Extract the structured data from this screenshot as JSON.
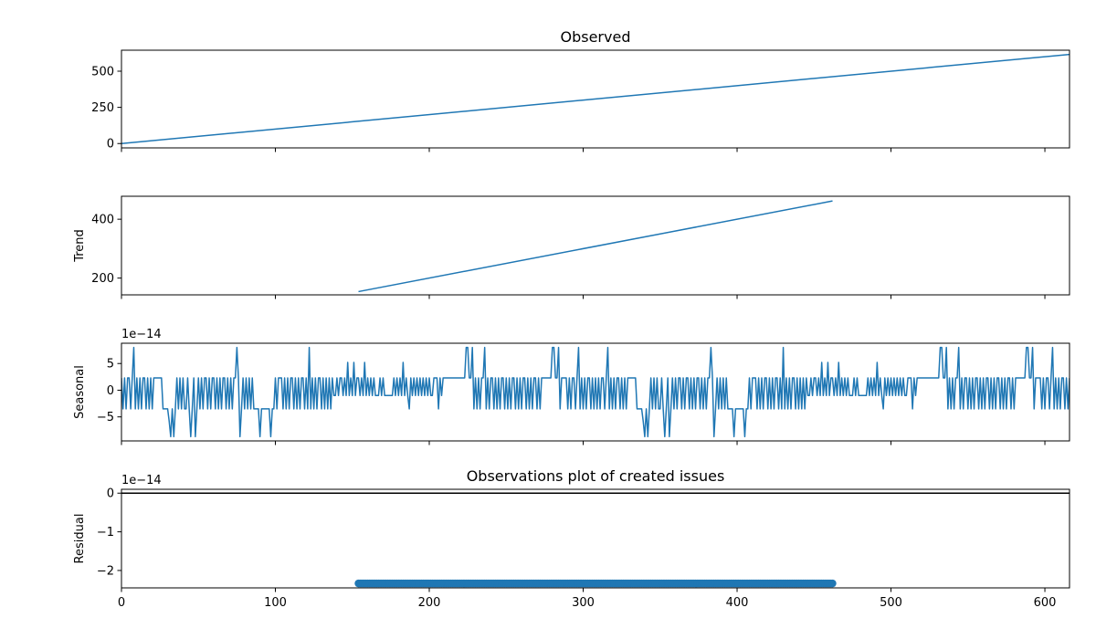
{
  "chart_data": {
    "type": "line",
    "xlim": [
      0,
      616
    ],
    "xticks": [
      0,
      100,
      200,
      300,
      400,
      500,
      600
    ],
    "line_color": "#1f77b4",
    "panels": [
      {
        "key": "observed",
        "type": "line",
        "title": "Observed",
        "ylabel": "",
        "offset_label": "",
        "ylim": [
          -30,
          645
        ],
        "yticks": [
          0,
          250,
          500
        ],
        "series": [
          {
            "x": [
              0,
              616
            ],
            "y": [
              0,
              616
            ]
          }
        ]
      },
      {
        "key": "trend",
        "type": "line",
        "title": "",
        "ylabel": "Trend",
        "offset_label": "",
        "ylim": [
          143,
          478
        ],
        "yticks": [
          200,
          400
        ],
        "series": [
          {
            "x": [
              154,
              462
            ],
            "y": [
              154,
              462
            ]
          }
        ]
      },
      {
        "key": "seasonal",
        "type": "line",
        "title": "",
        "ylabel": "Seasonal",
        "offset_label": "1e−14",
        "ylim": [
          -9.5,
          8.8
        ],
        "yticks": [
          -5,
          0,
          5
        ],
        "pattern": {
          "period": 308,
          "start": 0,
          "end": 616,
          "levels": [
            2.3,
            -3.5,
            2.3,
            -3.5,
            2.3,
            2.3,
            -3.5,
            2.3,
            8.0,
            -3.5,
            2.3,
            -3.5,
            2.3,
            -3.5,
            2.3,
            2.3,
            -3.5,
            2.3,
            -3.5,
            2.3,
            -3.5,
            2.3,
            2.3,
            2.3,
            2.3,
            2.3,
            2.3,
            -3.5,
            -3.5,
            -3.5,
            -3.5,
            -5.8,
            -8.7,
            -3.5,
            -8.7,
            -3.5,
            2.3,
            -3.5,
            2.3,
            -3.5,
            2.3,
            -3.5,
            -3.5,
            2.3,
            -3.5,
            -8.7,
            -3.5,
            2.3,
            -8.7,
            -3.5,
            2.3,
            -3.5,
            2.3,
            -3.5,
            2.3,
            2.3,
            -3.5,
            2.3,
            -3.5,
            2.3,
            2.3,
            -3.5,
            2.3,
            -3.5,
            2.3,
            -3.5,
            2.3,
            2.3,
            -3.5,
            2.3,
            -3.5,
            2.3,
            -3.5,
            2.3,
            2.3,
            8.0,
            2.3,
            -8.7,
            -3.5,
            2.3,
            -3.5,
            2.3,
            -3.5,
            2.3,
            -3.5,
            2.3,
            -3.5,
            -3.5,
            -3.5,
            -3.5,
            -8.7,
            -3.5,
            -3.5,
            -3.5,
            -3.5,
            -3.5,
            -3.5,
            -8.7,
            -3.5,
            -3.5,
            2.3,
            -3.5,
            2.3,
            2.3,
            2.3,
            -3.5,
            2.3,
            -3.5,
            2.3,
            -3.5,
            2.3,
            2.3,
            -3.5,
            2.3,
            -3.5,
            2.3,
            -3.5,
            2.3,
            2.3,
            -3.5,
            2.3,
            -3.5,
            8.0,
            -3.5,
            2.3,
            -3.5,
            2.3,
            -3.5,
            2.3,
            2.3,
            -3.5,
            2.3,
            -3.5,
            2.3,
            -3.5,
            2.3,
            -3.5,
            2.3,
            -1.0,
            -1.0,
            2.3,
            -1.0,
            2.3,
            2.3,
            -1.0,
            2.3,
            -1.0,
            5.2,
            -1.0,
            2.3,
            -1.0,
            5.2,
            -1.0,
            2.3,
            2.3,
            -1.0,
            2.3,
            -1.0,
            5.2,
            -1.0,
            2.3,
            -1.0,
            2.3,
            -1.0,
            2.3,
            -1.0,
            -1.0,
            -1.0,
            2.3,
            -1.0,
            2.3,
            -1.0,
            -1.0,
            -1.0,
            -1.0,
            -1.0,
            -1.0,
            2.3,
            -1.0,
            2.3,
            -1.0,
            2.3,
            -1.0,
            5.2,
            -1.0,
            2.3,
            -1.0,
            -3.5,
            2.3,
            -1.0,
            2.3,
            -1.0,
            2.3,
            -1.0,
            2.3,
            -1.0,
            2.3,
            -1.0,
            2.3,
            -1.0,
            2.3,
            -1.0,
            -1.0,
            2.3,
            2.3,
            2.3,
            -3.5,
            2.3,
            -1.0,
            2.3,
            2.3,
            2.3,
            2.3,
            2.3,
            2.3,
            2.3,
            2.3,
            2.3,
            2.3,
            2.3,
            2.3,
            2.3,
            2.3,
            2.3,
            8.0,
            8.0,
            2.3,
            2.3,
            8.0,
            -3.5,
            2.3,
            -3.5,
            2.3,
            -3.5,
            2.3,
            2.3,
            8.0,
            -3.5,
            2.3,
            -3.5,
            2.3,
            2.3,
            -3.5,
            2.3,
            -3.5,
            2.3,
            -3.5,
            2.3,
            2.3,
            -3.5,
            2.3,
            -3.5,
            2.3,
            -3.5,
            2.3,
            2.3,
            -3.5,
            2.3,
            -3.5,
            2.3,
            -3.5,
            2.3,
            2.3,
            -3.5,
            2.3,
            -3.5,
            2.3,
            -3.5,
            2.3,
            2.3,
            -3.5,
            2.3,
            -3.5,
            2.3,
            2.3,
            2.3,
            2.3,
            2.3,
            2.3,
            2.3,
            8.0,
            8.0,
            2.3,
            2.3,
            8.0,
            -3.5,
            2.3,
            2.3,
            2.3
          ]
        }
      },
      {
        "key": "residual",
        "type": "scatter",
        "title": "Observations plot of created issues",
        "ylabel": "Residual",
        "offset_label": "1e−14",
        "ylim": [
          -2.45,
          0.1
        ],
        "yticks": [
          -2,
          -1,
          0
        ],
        "reference_line": 0,
        "markers": {
          "x_start": 154,
          "x_end": 462,
          "y": -2.335
        }
      }
    ]
  }
}
